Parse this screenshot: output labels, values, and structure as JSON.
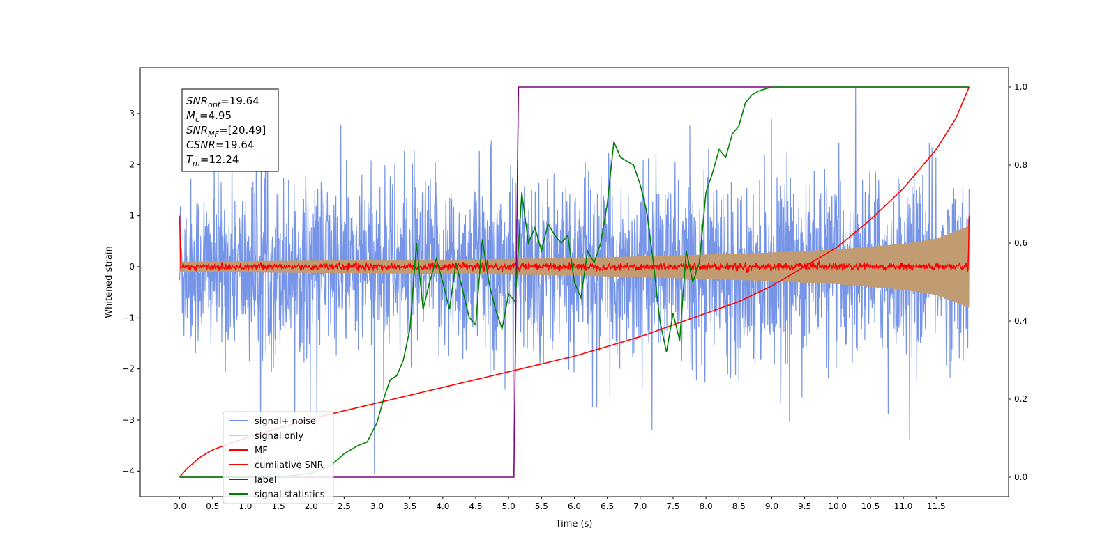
{
  "chart_data": {
    "type": "line",
    "title": "",
    "xlabel": "Time (s)",
    "ylabel_left": "Whitened strain",
    "ylabel_right": "",
    "xlim": [
      -0.6,
      12.6
    ],
    "ylim_left": [
      -4.5,
      3.9
    ],
    "ylim_right": [
      -0.05,
      1.05
    ],
    "x_ticks": [
      "0.0",
      "0.5",
      "1.0",
      "1.5",
      "2.0",
      "2.5",
      "3.0",
      "3.5",
      "4.0",
      "4.5",
      "5.0",
      "5.5",
      "6.0",
      "6.5",
      "7.0",
      "7.5",
      "8.0",
      "8.5",
      "9.0",
      "9.5",
      "10.0",
      "10.5",
      "11.0",
      "11.5"
    ],
    "y_ticks_left": [
      "3",
      "2",
      "1",
      "0",
      "−1",
      "−2",
      "−3",
      "−4"
    ],
    "y_ticks_right": [
      "1.0",
      "0.8",
      "0.6",
      "0.4",
      "0.2",
      "0.0"
    ],
    "grid": false,
    "legend_position": "lower-left",
    "legend": [
      {
        "label": "signal+ noise",
        "color": "#6b8ce6"
      },
      {
        "label": "signal only",
        "color": "#ffc870"
      },
      {
        "label": "MF",
        "color": "#ff0000"
      },
      {
        "label": "cumilative SNR",
        "color": "#ff0000"
      },
      {
        "label": "label",
        "color": "#800080"
      },
      {
        "label": "signal statistics",
        "color": "#008000"
      }
    ],
    "annotation": {
      "lines": [
        {
          "sym": "SNR",
          "sub": "opt",
          "val": "=19.64"
        },
        {
          "sym": "M",
          "sub": "c",
          "val": "=4.95"
        },
        {
          "sym": "SNR",
          "sub": "MF",
          "val": "=[20.49]"
        },
        {
          "sym": "CSNR",
          "sub": "",
          "val": "=19.64"
        },
        {
          "sym": "T",
          "sub": "m",
          "val": "=12.24"
        }
      ]
    },
    "series": [
      {
        "name": "signal+ noise",
        "axis": "left",
        "color": "#6b8ce6",
        "style": "dense-noise",
        "x_range": [
          0.0,
          12.0
        ],
        "approx_amplitude": 1.3,
        "max": 3.5,
        "min": -4.2
      },
      {
        "name": "signal only",
        "axis": "left",
        "color": "#c19c72",
        "style": "envelope",
        "x": [
          0.0,
          2.0,
          4.0,
          6.0,
          8.0,
          9.0,
          10.0,
          11.0,
          11.5,
          12.0
        ],
        "envelope": [
          0.1,
          0.12,
          0.14,
          0.17,
          0.24,
          0.28,
          0.34,
          0.45,
          0.55,
          0.8
        ]
      },
      {
        "name": "MF",
        "axis": "left",
        "color": "#ff0000",
        "style": "noise-small",
        "x_range": [
          0.0,
          12.0
        ],
        "approx_amplitude": 0.05,
        "start_value": 1.0,
        "end_value": 1.0
      },
      {
        "name": "cumilative SNR",
        "axis": "right",
        "color": "#ff0000",
        "x": [
          0.0,
          0.1,
          0.3,
          0.5,
          1.0,
          2.0,
          3.0,
          4.0,
          5.0,
          6.0,
          7.0,
          8.0,
          8.5,
          9.0,
          9.5,
          10.0,
          10.5,
          11.0,
          11.5,
          11.8,
          12.0
        ],
        "y": [
          0.0,
          0.02,
          0.05,
          0.07,
          0.1,
          0.15,
          0.19,
          0.23,
          0.27,
          0.31,
          0.36,
          0.42,
          0.45,
          0.49,
          0.54,
          0.59,
          0.66,
          0.74,
          0.84,
          0.92,
          1.0
        ]
      },
      {
        "name": "label",
        "axis": "right",
        "color": "#800080",
        "x": [
          0.0,
          5.08,
          5.15,
          12.0
        ],
        "y": [
          0.0,
          0.0,
          1.0,
          1.0
        ]
      },
      {
        "name": "signal statistics",
        "axis": "right",
        "color": "#008000",
        "x": [
          0.0,
          0.5,
          1.0,
          1.5,
          2.0,
          2.3,
          2.5,
          2.7,
          2.85,
          3.0,
          3.1,
          3.2,
          3.3,
          3.4,
          3.5,
          3.6,
          3.7,
          3.8,
          3.9,
          4.0,
          4.1,
          4.2,
          4.3,
          4.4,
          4.5,
          4.6,
          4.7,
          4.8,
          4.9,
          5.0,
          5.1,
          5.2,
          5.3,
          5.4,
          5.5,
          5.6,
          5.7,
          5.8,
          5.9,
          6.0,
          6.1,
          6.2,
          6.3,
          6.4,
          6.5,
          6.6,
          6.7,
          6.8,
          6.9,
          7.0,
          7.1,
          7.2,
          7.3,
          7.4,
          7.5,
          7.6,
          7.7,
          7.8,
          7.9,
          8.0,
          8.1,
          8.2,
          8.3,
          8.4,
          8.5,
          8.6,
          8.7,
          8.8,
          9.0,
          9.5,
          10.0,
          10.5,
          11.0,
          11.5,
          12.0
        ],
        "y": [
          0.0,
          0.0,
          0.0,
          0.0,
          0.01,
          0.03,
          0.06,
          0.08,
          0.09,
          0.14,
          0.2,
          0.25,
          0.26,
          0.3,
          0.38,
          0.6,
          0.43,
          0.5,
          0.56,
          0.5,
          0.43,
          0.55,
          0.48,
          0.41,
          0.39,
          0.61,
          0.5,
          0.43,
          0.38,
          0.47,
          0.45,
          0.73,
          0.6,
          0.64,
          0.58,
          0.65,
          0.62,
          0.6,
          0.62,
          0.5,
          0.46,
          0.58,
          0.55,
          0.6,
          0.7,
          0.86,
          0.82,
          0.81,
          0.8,
          0.75,
          0.68,
          0.55,
          0.4,
          0.32,
          0.42,
          0.35,
          0.58,
          0.5,
          0.55,
          0.73,
          0.78,
          0.84,
          0.82,
          0.88,
          0.9,
          0.96,
          0.98,
          0.99,
          1.0,
          1.0,
          1.0,
          1.0,
          1.0,
          1.0,
          1.0
        ]
      }
    ]
  }
}
